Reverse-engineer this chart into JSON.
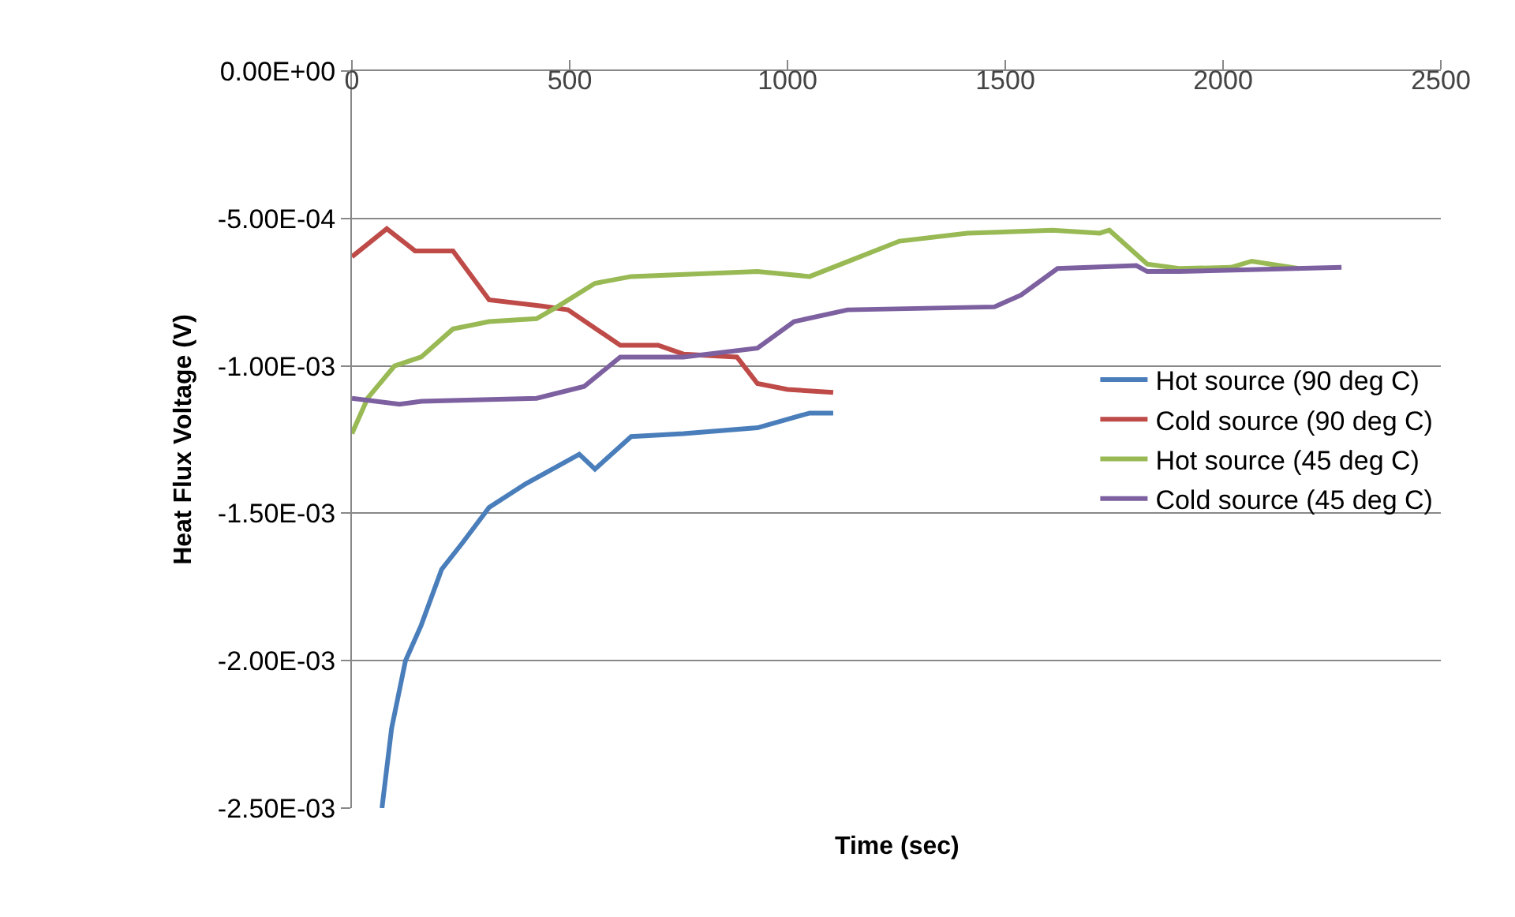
{
  "chart_data": {
    "type": "line",
    "xlabel": "Time (sec)",
    "ylabel": "Heat Flux Voltage (V)",
    "xlim": [
      0,
      2500
    ],
    "xticks": [
      0,
      500,
      1000,
      1500,
      2000,
      2500
    ],
    "ylim": [
      -0.0025,
      0
    ],
    "yticks": [
      {
        "value": 0,
        "label": "0.00E+00"
      },
      {
        "value": -0.0005,
        "label": "-5.00E-04"
      },
      {
        "value": -0.001,
        "label": "-1.00E-03"
      },
      {
        "value": -0.0015,
        "label": "-1.50E-03"
      },
      {
        "value": -0.002,
        "label": "-2.00E-03"
      },
      {
        "value": -0.0025,
        "label": "-2.50E-03"
      }
    ],
    "grid": "y",
    "legend": "right",
    "marker": "none",
    "line_style": "solid",
    "series": [
      {
        "name": "Hot source (90 deg C)",
        "color": "#4a7ebb",
        "x": [
          69,
          91,
          123,
          159,
          206,
          254,
          315,
          399,
          522,
          558,
          641,
          761,
          931,
          1051,
          1105
        ],
        "values": [
          -0.0025,
          -0.00223,
          -0.002,
          -0.00188,
          -0.00169,
          -0.0016,
          -0.00148,
          -0.0014,
          -0.0013,
          -0.00135,
          -0.00124,
          -0.00123,
          -0.00121,
          -0.00116,
          -0.00116
        ]
      },
      {
        "name": "Cold source (90 deg C)",
        "color": "#be4b48",
        "x": [
          0,
          80,
          145,
          232,
          315,
          435,
          496,
          616,
          703,
          761,
          884,
          931,
          1000,
          1105
        ],
        "values": [
          -0.00063,
          -0.000535,
          -0.00061,
          -0.00061,
          -0.000776,
          -0.000797,
          -0.00081,
          -0.00093,
          -0.00093,
          -0.00096,
          -0.00097,
          -0.00106,
          -0.00108,
          -0.00109
        ]
      },
      {
        "name": "Hot source (45 deg C)",
        "color": "#98b954",
        "x": [
          0,
          36,
          98,
          159,
          232,
          315,
          424,
          471,
          558,
          641,
          931,
          1051,
          1149,
          1257,
          1413,
          1609,
          1717,
          1739,
          1826,
          1899,
          2018,
          2066,
          2174
        ],
        "values": [
          -0.00123,
          -0.00111,
          -0.001,
          -0.00097,
          -0.000875,
          -0.00085,
          -0.00084,
          -0.0008,
          -0.00072,
          -0.000697,
          -0.00068,
          -0.000697,
          -0.00064,
          -0.000577,
          -0.00055,
          -0.00054,
          -0.00055,
          -0.00054,
          -0.000655,
          -0.00067,
          -0.000666,
          -0.000645,
          -0.00067
        ]
      },
      {
        "name": "Cold source (45 deg C)",
        "color": "#7d60a0",
        "x": [
          0,
          109,
          160,
          424,
          533,
          616,
          761,
          931,
          1015,
          1138,
          1475,
          1536,
          1620,
          1801,
          1826,
          1899,
          2272
        ],
        "values": [
          -0.00111,
          -0.00113,
          -0.00112,
          -0.00111,
          -0.00107,
          -0.00097,
          -0.00097,
          -0.00094,
          -0.00085,
          -0.00081,
          -0.0008,
          -0.00076,
          -0.00067,
          -0.00066,
          -0.00068,
          -0.00068,
          -0.000666
        ]
      }
    ]
  }
}
